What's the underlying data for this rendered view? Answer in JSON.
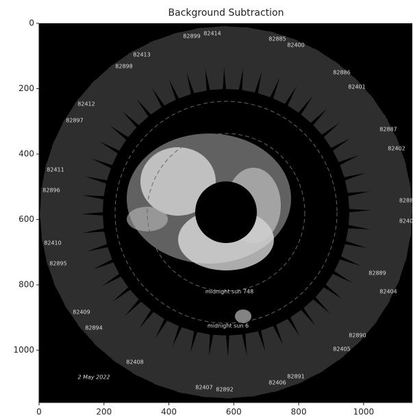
{
  "chart_data": {
    "type": "image",
    "title": "Background Subtraction",
    "xlim": [
      0,
      1150
    ],
    "ylim": [
      1160,
      0
    ],
    "xticks": [
      0,
      200,
      400,
      600,
      800,
      1000
    ],
    "yticks": [
      0,
      200,
      400,
      600,
      800,
      1000
    ],
    "annotations": [
      "82899",
      "82414",
      "82885",
      "82400",
      "82413",
      "82898",
      "82886",
      "82401",
      "82412",
      "82897",
      "82887",
      "82402",
      "82411",
      "82896",
      "8288",
      "8240",
      "82410",
      "82895",
      "82889",
      "82404",
      "82409",
      "82894",
      "82890",
      "82405",
      "82408",
      "82891",
      "82406",
      "82407",
      "82892",
      "midnight sun 748",
      "midnight sun 6",
      "2 May 2022"
    ]
  }
}
